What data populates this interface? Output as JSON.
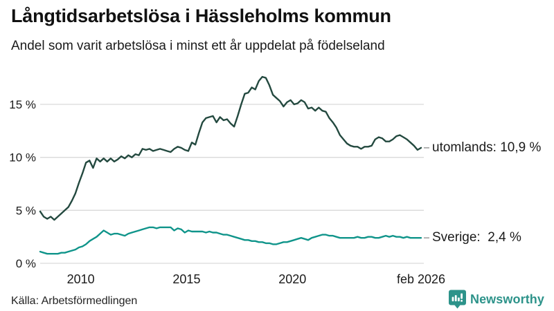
{
  "title": "Långtidsarbetslösa i Hässleholms kommun",
  "subtitle": "Andel som varit arbetslösa i minst ett år uppdelat på födelseland",
  "source": "Källa: Arbetsförmedlingen",
  "branding": {
    "name": "Newsworthy",
    "color": "#2d938a"
  },
  "colors": {
    "utomlands_line": "#23493f",
    "sverige_line": "#0f948a",
    "gridline": "#d9d9d9",
    "axis_text": "#1a1a1a",
    "end_dash": "#999999",
    "background": "#ffffff"
  },
  "chart_data": {
    "type": "line",
    "title": "Långtidsarbetslösa i Hässleholms kommun",
    "subtitle": "Andel som varit arbetslösa i minst ett år uppdelat på födelseland",
    "xlabel": "",
    "ylabel": "",
    "grid": "horizontal-only",
    "legend_position": "end-of-line",
    "xlim": [
      2008.08,
      2026.08
    ],
    "ylim": [
      0,
      17.8
    ],
    "x_start": 2008.08,
    "x_end": 2026.08,
    "x_unit": "year (monthly series, feb 2008 – feb 2026)",
    "y_unit": "percent",
    "yticks": [
      {
        "value": 0,
        "label": "0 %"
      },
      {
        "value": 5,
        "label": "5 %"
      },
      {
        "value": 10,
        "label": "10 %"
      },
      {
        "value": 15,
        "label": "15 %"
      }
    ],
    "xticks": [
      {
        "value": 2010,
        "label": "2010"
      },
      {
        "value": 2015,
        "label": "2015"
      },
      {
        "value": 2020,
        "label": "2020"
      },
      {
        "value": 2026.08,
        "label": "feb 2026"
      }
    ],
    "series": [
      {
        "name": "utomlands",
        "end_label": "utomlands: 10,9 %",
        "last_value": 10.9,
        "color": "#23493f",
        "values": [
          4.9,
          4.4,
          4.2,
          4.4,
          4.1,
          4.4,
          4.7,
          5.0,
          5.3,
          5.9,
          6.6,
          7.6,
          8.5,
          9.5,
          9.7,
          9.0,
          9.9,
          9.6,
          9.9,
          9.6,
          9.9,
          9.6,
          9.8,
          10.1,
          9.9,
          10.2,
          10.0,
          10.3,
          10.2,
          10.8,
          10.7,
          10.8,
          10.6,
          10.7,
          10.8,
          10.7,
          10.6,
          10.5,
          10.8,
          11.0,
          10.9,
          10.7,
          10.6,
          11.4,
          11.2,
          12.3,
          13.3,
          13.7,
          13.8,
          13.9,
          13.3,
          13.8,
          13.5,
          13.6,
          13.2,
          12.9,
          13.9,
          15.0,
          16.0,
          16.1,
          16.6,
          16.4,
          17.2,
          17.6,
          17.5,
          16.8,
          15.9,
          15.6,
          15.3,
          14.8,
          15.2,
          15.4,
          15.0,
          15.1,
          15.4,
          15.2,
          14.6,
          14.7,
          14.4,
          14.7,
          14.4,
          14.3,
          13.7,
          13.3,
          12.8,
          12.1,
          11.7,
          11.3,
          11.1,
          11.0,
          11.0,
          10.8,
          11.0,
          11.0,
          11.1,
          11.7,
          11.9,
          11.8,
          11.5,
          11.5,
          11.7,
          12.0,
          12.1,
          11.9,
          11.7,
          11.4,
          11.1,
          10.7,
          10.9
        ]
      },
      {
        "name": "Sverige",
        "end_label": "Sverige:  2,4 %",
        "last_value": 2.4,
        "color": "#0f948a",
        "values": [
          1.1,
          1.0,
          0.9,
          0.9,
          0.9,
          0.9,
          1.0,
          1.0,
          1.1,
          1.2,
          1.3,
          1.5,
          1.6,
          1.8,
          2.1,
          2.3,
          2.5,
          2.8,
          3.1,
          2.9,
          2.7,
          2.8,
          2.8,
          2.7,
          2.6,
          2.8,
          2.9,
          3.0,
          3.1,
          3.2,
          3.3,
          3.4,
          3.4,
          3.3,
          3.4,
          3.4,
          3.4,
          3.4,
          3.1,
          3.3,
          3.2,
          2.9,
          3.1,
          3.0,
          3.0,
          3.0,
          3.0,
          2.9,
          3.0,
          2.9,
          2.9,
          2.8,
          2.7,
          2.7,
          2.6,
          2.5,
          2.4,
          2.3,
          2.2,
          2.2,
          2.1,
          2.1,
          2.0,
          2.0,
          1.9,
          1.9,
          1.8,
          1.8,
          1.9,
          2.0,
          2.0,
          2.1,
          2.2,
          2.3,
          2.4,
          2.3,
          2.2,
          2.4,
          2.5,
          2.6,
          2.7,
          2.7,
          2.6,
          2.6,
          2.5,
          2.4,
          2.4,
          2.4,
          2.4,
          2.4,
          2.5,
          2.4,
          2.4,
          2.5,
          2.5,
          2.4,
          2.4,
          2.5,
          2.6,
          2.5,
          2.6,
          2.5,
          2.5,
          2.4,
          2.5,
          2.4,
          2.4,
          2.4,
          2.4
        ]
      }
    ]
  }
}
